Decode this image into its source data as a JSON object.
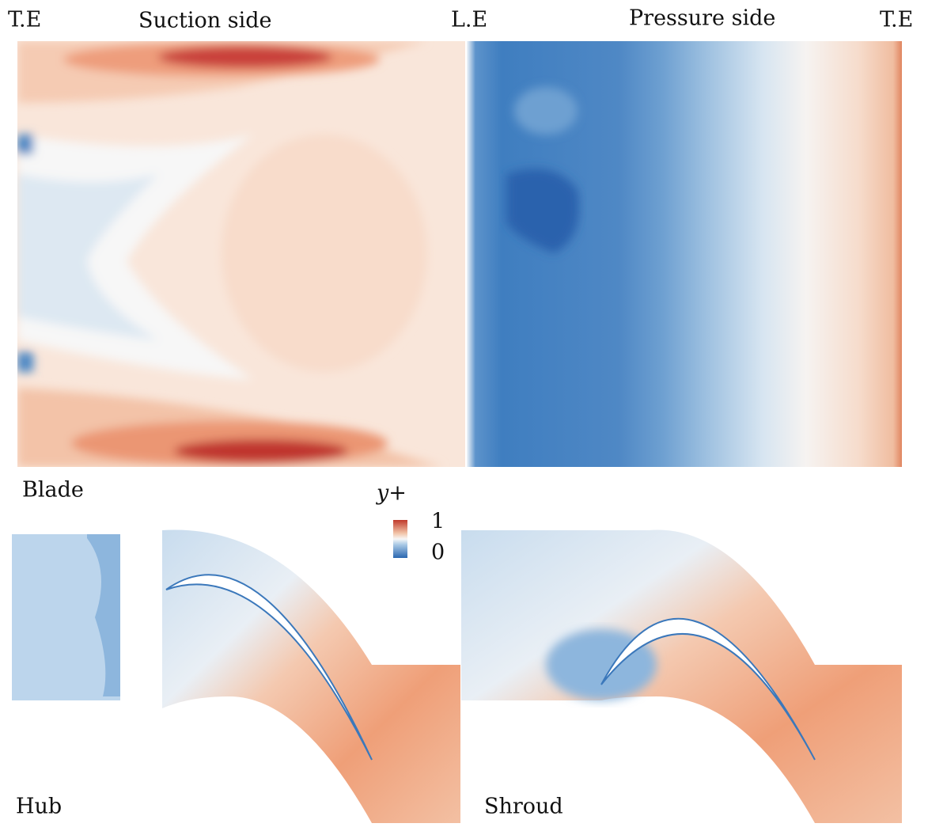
{
  "labels": {
    "top_left": "T.E",
    "suction": "Suction side",
    "leading": "L.E",
    "pressure": "Pressure side",
    "top_right": "T.E",
    "blade": "Blade",
    "hub": "Hub",
    "shroud": "Shroud"
  },
  "colorbar": {
    "title": "y+",
    "max": 1,
    "min": 0
  }
}
